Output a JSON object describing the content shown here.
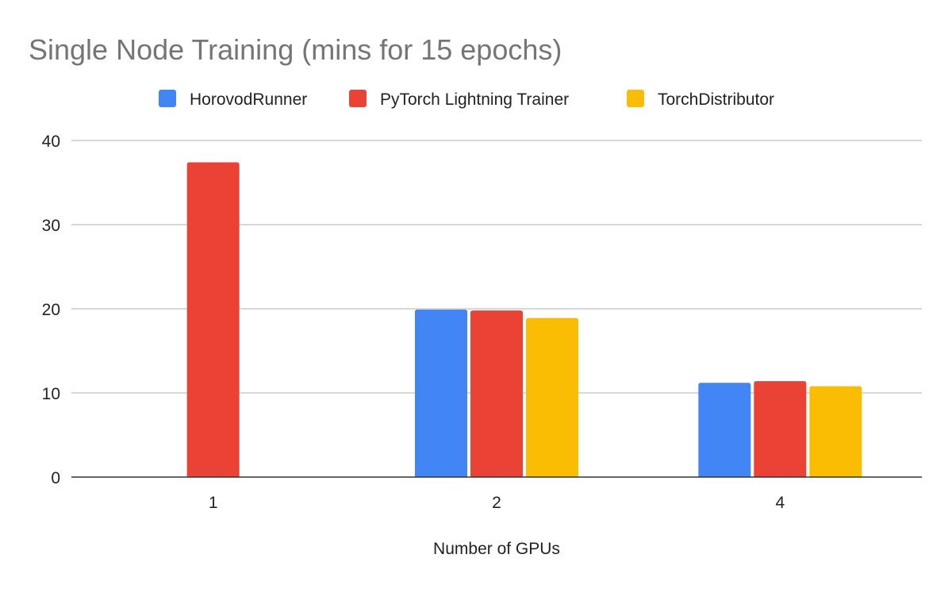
{
  "chart_data": {
    "type": "bar",
    "title": "Single Node Training (mins for 15 epochs)",
    "xlabel": "Number of GPUs",
    "ylabel": "",
    "categories": [
      "1",
      "2",
      "4"
    ],
    "ylim": [
      0,
      40
    ],
    "yticks": [
      "0",
      "10",
      "20",
      "30",
      "40"
    ],
    "grid": true,
    "legend_position": "top",
    "series": [
      {
        "name": "HorovodRunner",
        "color": "#4285f4",
        "values": [
          null,
          19.9,
          11.2
        ]
      },
      {
        "name": "PyTorch Lightning Trainer",
        "color": "#ea4335",
        "values": [
          37.4,
          19.8,
          11.4
        ]
      },
      {
        "name": "TorchDistributor",
        "color": "#fbbc04",
        "values": [
          null,
          18.9,
          10.8
        ]
      }
    ]
  }
}
